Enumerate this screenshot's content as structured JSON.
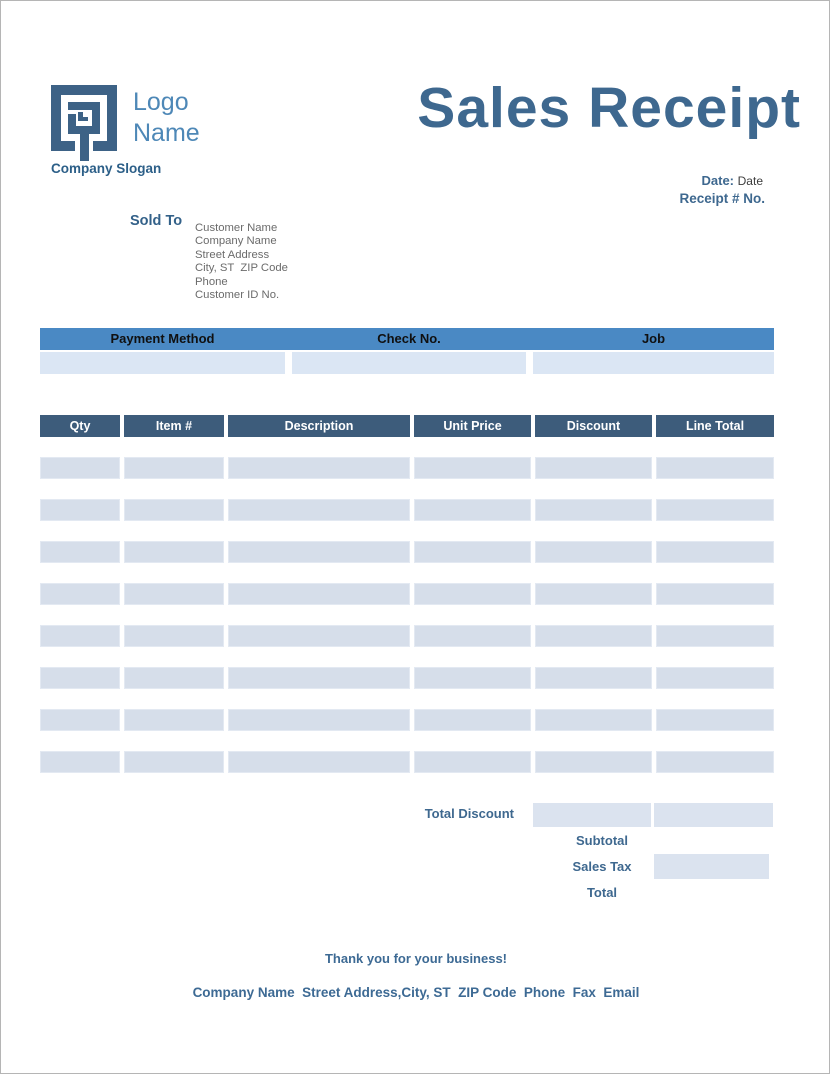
{
  "logo": {
    "name_line1": "Logo",
    "name_line2": "Name",
    "slogan": "Company Slogan"
  },
  "title": "Sales Receipt",
  "meta": {
    "date_label": "Date:",
    "date_value": "Date",
    "receipt_label": "Receipt # No."
  },
  "sold_to": {
    "label": "Sold To",
    "address_block": "Customer Name\nCompany Name\nStreet Address\nCity, ST  ZIP Code\nPhone\nCustomer ID No."
  },
  "payment_table": {
    "headers": [
      "Payment Method",
      "Check No.",
      "Job"
    ],
    "values": [
      "",
      "",
      ""
    ]
  },
  "items_table": {
    "headers": [
      "Qty",
      "Item #",
      "Description",
      "Unit Price",
      "Discount",
      "Line Total"
    ],
    "rows": [
      [
        "",
        "",
        "",
        "",
        "",
        ""
      ],
      [
        "",
        "",
        "",
        "",
        "",
        ""
      ],
      [
        "",
        "",
        "",
        "",
        "",
        ""
      ],
      [
        "",
        "",
        "",
        "",
        "",
        ""
      ],
      [
        "",
        "",
        "",
        "",
        "",
        ""
      ],
      [
        "",
        "",
        "",
        "",
        "",
        ""
      ],
      [
        "",
        "",
        "",
        "",
        "",
        ""
      ],
      [
        "",
        "",
        "",
        "",
        "",
        ""
      ]
    ]
  },
  "totals": {
    "total_discount_label": "Total Discount",
    "total_discount_value": "",
    "total_discount_line_value": "",
    "subtotal_label": "Subtotal",
    "subtotal_value": "",
    "sales_tax_label": "Sales Tax",
    "sales_tax_value": "",
    "total_label": "Total",
    "total_value": ""
  },
  "footer": {
    "thanks": "Thank you for your business!",
    "company_line": "Company Name  Street Address,City, ST  ZIP Code  Phone  Fax  Email"
  },
  "colors": {
    "accent_dark_blue": "#3e688f",
    "accent_light_blue": "#4e88b7",
    "payment_header_bg": "#4a89c4",
    "items_header_bg": "#3d5c7b",
    "field_fill": "#d6deea",
    "payment_fill": "#dbe6f4"
  }
}
